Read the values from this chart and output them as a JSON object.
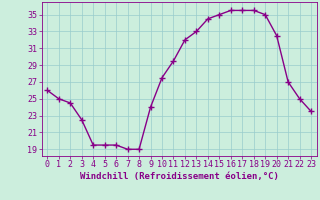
{
  "x": [
    0,
    1,
    2,
    3,
    4,
    5,
    6,
    7,
    8,
    9,
    10,
    11,
    12,
    13,
    14,
    15,
    16,
    17,
    18,
    19,
    20,
    21,
    22,
    23
  ],
  "y": [
    26,
    25,
    24.5,
    22.5,
    19.5,
    19.5,
    19.5,
    19,
    19,
    24,
    27.5,
    29.5,
    32,
    33,
    34.5,
    35,
    35.5,
    35.5,
    35.5,
    35,
    32.5,
    27,
    25,
    23.5
  ],
  "line_color": "#880088",
  "marker": "+",
  "marker_size": 4,
  "marker_edge_width": 1.0,
  "bg_color": "#cceedd",
  "grid_color": "#99cccc",
  "xlabel": "Windchill (Refroidissement éolien,°C)",
  "ytick_labels": [
    "19",
    "21",
    "23",
    "25",
    "27",
    "29",
    "31",
    "33",
    "35"
  ],
  "ytick_vals": [
    19,
    21,
    23,
    25,
    27,
    29,
    31,
    33,
    35
  ],
  "xlim": [
    -0.5,
    23.5
  ],
  "ylim": [
    18.2,
    36.5
  ],
  "xlabel_fontsize": 6.5,
  "tick_fontsize": 6,
  "line_width": 1.0
}
